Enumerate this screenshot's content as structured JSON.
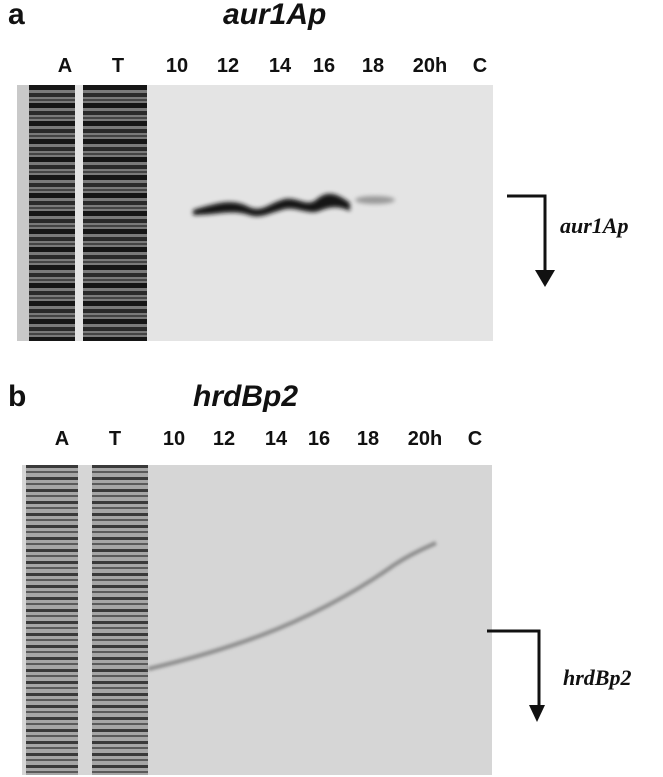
{
  "panel_a": {
    "letter": "a",
    "title": "aur1Ap",
    "lanes": [
      "A",
      "T",
      "10",
      "12",
      "14",
      "16",
      "18",
      "20h",
      "C"
    ],
    "arrow_label": "aur1Ap",
    "gel_color": "#e4e4e4",
    "band_color": "#141414"
  },
  "panel_b": {
    "letter": "b",
    "title": "hrdBp2",
    "lanes": [
      "A",
      "T",
      "10",
      "12",
      "14",
      "16",
      "18",
      "20h",
      "C"
    ],
    "arrow_label": "hrdBp2",
    "gel_color": "#d6d6d6",
    "band_color": "#8a8a8a"
  }
}
